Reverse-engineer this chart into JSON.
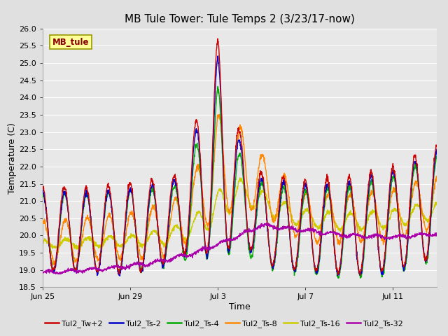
{
  "title": "MB Tule Tower: Tule Temps 2 (3/23/17-now)",
  "xlabel": "Time",
  "ylabel": "Temperature (C)",
  "ylim": [
    18.5,
    26.0
  ],
  "yticks": [
    18.5,
    19.0,
    19.5,
    20.0,
    20.5,
    21.0,
    21.5,
    22.0,
    22.5,
    23.0,
    23.5,
    24.0,
    24.5,
    25.0,
    25.5,
    26.0
  ],
  "xtick_positions": [
    0,
    4,
    8,
    12,
    16
  ],
  "xtick_labels": [
    "Jun 25",
    "Jun 29",
    "Jul 3",
    "Jul 7",
    "Jul 11"
  ],
  "background_color": "#e0e0e0",
  "plot_bg_color": "#e8e8e8",
  "grid_color": "#ffffff",
  "series_colors": {
    "Tul2_Tw+2": "#cc0000",
    "Tul2_Ts-2": "#0000cc",
    "Tul2_Ts-4": "#00aa00",
    "Tul2_Ts-8": "#ff8800",
    "Tul2_Ts-16": "#cccc00",
    "Tul2_Ts-32": "#aa00aa"
  },
  "legend_labels": [
    "Tul2_Tw+2",
    "Tul2_Ts-2",
    "Tul2_Ts-4",
    "Tul2_Ts-8",
    "Tul2_Ts-16",
    "Tul2_Ts-32"
  ],
  "station_box_label": "MB_tule",
  "station_box_bg": "#ffff99",
  "station_box_border": "#999900",
  "station_label_color": "#880000",
  "title_fontsize": 11,
  "axis_label_fontsize": 9,
  "tick_fontsize": 8,
  "legend_fontsize": 8,
  "linewidth": 1.0
}
